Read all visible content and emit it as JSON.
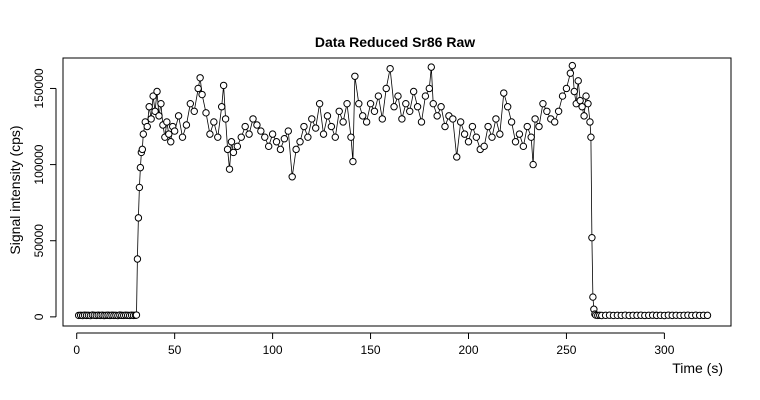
{
  "chart_data": {
    "type": "scatter",
    "title": "Data Reduced Sr86 Raw",
    "xlabel": "Time (s)",
    "ylabel": "Signal intensity (cps)",
    "xlim": [
      -7,
      334
    ],
    "ylim": [
      -6000,
      170000
    ],
    "xticks": [
      0,
      50,
      100,
      150,
      200,
      250,
      300
    ],
    "yticks": [
      0,
      50000,
      100000,
      150000
    ],
    "connected": true,
    "marker": "open-circle",
    "grid": false,
    "legend": "none",
    "points": [
      [
        1,
        950
      ],
      [
        2,
        1050
      ],
      [
        3,
        900
      ],
      [
        4,
        1100
      ],
      [
        5,
        980
      ],
      [
        6,
        1020
      ],
      [
        7,
        870
      ],
      [
        8,
        1150
      ],
      [
        9,
        1000
      ],
      [
        10,
        940
      ],
      [
        11,
        1080
      ],
      [
        12,
        960
      ],
      [
        13,
        1120
      ],
      [
        14,
        890
      ],
      [
        15,
        1010
      ],
      [
        16,
        1060
      ],
      [
        17,
        930
      ],
      [
        18,
        1090
      ],
      [
        19,
        970
      ],
      [
        20,
        1030
      ],
      [
        21,
        880
      ],
      [
        22,
        1140
      ],
      [
        23,
        990
      ],
      [
        24,
        950
      ],
      [
        25,
        1070
      ],
      [
        26,
        1010
      ],
      [
        27,
        920
      ],
      [
        28,
        1100
      ],
      [
        29,
        980
      ],
      [
        30,
        1040
      ],
      [
        30.5,
        1200
      ],
      [
        31,
        38000
      ],
      [
        31.5,
        65000
      ],
      [
        32,
        85000
      ],
      [
        32.5,
        98000
      ],
      [
        33,
        108000
      ],
      [
        33.5,
        110000
      ],
      [
        34,
        120000
      ],
      [
        35,
        128000
      ],
      [
        36,
        125000
      ],
      [
        37,
        138000
      ],
      [
        38,
        130000
      ],
      [
        39,
        145000
      ],
      [
        40,
        135000
      ],
      [
        41,
        148000
      ],
      [
        42,
        132000
      ],
      [
        43,
        140000
      ],
      [
        44,
        126000
      ],
      [
        45,
        118000
      ],
      [
        46,
        128000
      ],
      [
        47,
        120000
      ],
      [
        48,
        115000
      ],
      [
        49,
        125000
      ],
      [
        50,
        122000
      ],
      [
        52,
        132000
      ],
      [
        54,
        118000
      ],
      [
        56,
        126000
      ],
      [
        58,
        140000
      ],
      [
        60,
        135000
      ],
      [
        62,
        150000
      ],
      [
        63,
        157000
      ],
      [
        64,
        146000
      ],
      [
        66,
        134000
      ],
      [
        68,
        120000
      ],
      [
        70,
        128000
      ],
      [
        72,
        118000
      ],
      [
        74,
        138000
      ],
      [
        75,
        152000
      ],
      [
        76,
        130000
      ],
      [
        77,
        110000
      ],
      [
        78,
        97000
      ],
      [
        79,
        115000
      ],
      [
        80,
        108000
      ],
      [
        82,
        112000
      ],
      [
        84,
        118000
      ],
      [
        86,
        125000
      ],
      [
        88,
        120000
      ],
      [
        90,
        130000
      ],
      [
        92,
        126000
      ],
      [
        94,
        122000
      ],
      [
        96,
        118000
      ],
      [
        98,
        112000
      ],
      [
        100,
        120000
      ],
      [
        102,
        115000
      ],
      [
        104,
        110000
      ],
      [
        106,
        117000
      ],
      [
        108,
        122000
      ],
      [
        110,
        92000
      ],
      [
        112,
        110000
      ],
      [
        114,
        115000
      ],
      [
        116,
        125000
      ],
      [
        118,
        118000
      ],
      [
        120,
        130000
      ],
      [
        122,
        124000
      ],
      [
        124,
        140000
      ],
      [
        126,
        120000
      ],
      [
        128,
        132000
      ],
      [
        130,
        125000
      ],
      [
        132,
        118000
      ],
      [
        134,
        135000
      ],
      [
        136,
        128000
      ],
      [
        138,
        140000
      ],
      [
        140,
        118000
      ],
      [
        141,
        102000
      ],
      [
        142,
        158000
      ],
      [
        144,
        140000
      ],
      [
        146,
        132000
      ],
      [
        148,
        128000
      ],
      [
        150,
        140000
      ],
      [
        152,
        135000
      ],
      [
        154,
        145000
      ],
      [
        156,
        130000
      ],
      [
        158,
        150000
      ],
      [
        160,
        163000
      ],
      [
        162,
        138000
      ],
      [
        164,
        145000
      ],
      [
        166,
        130000
      ],
      [
        168,
        140000
      ],
      [
        170,
        135000
      ],
      [
        172,
        148000
      ],
      [
        174,
        138000
      ],
      [
        176,
        128000
      ],
      [
        178,
        145000
      ],
      [
        180,
        150000
      ],
      [
        181,
        164000
      ],
      [
        182,
        140000
      ],
      [
        184,
        132000
      ],
      [
        186,
        138000
      ],
      [
        188,
        125000
      ],
      [
        190,
        132000
      ],
      [
        192,
        130000
      ],
      [
        194,
        105000
      ],
      [
        196,
        128000
      ],
      [
        198,
        120000
      ],
      [
        200,
        115000
      ],
      [
        202,
        125000
      ],
      [
        204,
        118000
      ],
      [
        206,
        110000
      ],
      [
        208,
        112000
      ],
      [
        210,
        125000
      ],
      [
        212,
        118000
      ],
      [
        214,
        130000
      ],
      [
        216,
        120000
      ],
      [
        218,
        147000
      ],
      [
        220,
        138000
      ],
      [
        222,
        128000
      ],
      [
        224,
        115000
      ],
      [
        226,
        120000
      ],
      [
        228,
        112000
      ],
      [
        230,
        125000
      ],
      [
        232,
        118000
      ],
      [
        233,
        100000
      ],
      [
        234,
        130000
      ],
      [
        236,
        125000
      ],
      [
        238,
        140000
      ],
      [
        240,
        135000
      ],
      [
        242,
        130000
      ],
      [
        244,
        128000
      ],
      [
        246,
        135000
      ],
      [
        248,
        145000
      ],
      [
        250,
        150000
      ],
      [
        252,
        160000
      ],
      [
        253,
        165000
      ],
      [
        254,
        148000
      ],
      [
        255,
        140000
      ],
      [
        256,
        155000
      ],
      [
        257,
        142000
      ],
      [
        258,
        138000
      ],
      [
        259,
        132000
      ],
      [
        260,
        145000
      ],
      [
        261,
        140000
      ],
      [
        262,
        128000
      ],
      [
        262.5,
        118000
      ],
      [
        263,
        52000
      ],
      [
        263.5,
        13000
      ],
      [
        264,
        5000
      ],
      [
        264.5,
        1800
      ],
      [
        265,
        1100
      ],
      [
        266,
        950
      ],
      [
        267,
        1050
      ],
      [
        268,
        900
      ],
      [
        270,
        1000
      ],
      [
        272,
        1080
      ],
      [
        274,
        940
      ],
      [
        276,
        1020
      ],
      [
        278,
        960
      ],
      [
        280,
        1100
      ],
      [
        282,
        910
      ],
      [
        284,
        1040
      ],
      [
        286,
        990
      ],
      [
        288,
        1060
      ],
      [
        290,
        930
      ],
      [
        292,
        1010
      ],
      [
        294,
        1090
      ],
      [
        296,
        970
      ],
      [
        298,
        1030
      ],
      [
        300,
        890
      ],
      [
        302,
        1120
      ],
      [
        304,
        980
      ],
      [
        306,
        1050
      ],
      [
        308,
        940
      ],
      [
        310,
        1000
      ],
      [
        312,
        1070
      ],
      [
        314,
        920
      ],
      [
        316,
        1080
      ],
      [
        318,
        960
      ],
      [
        320,
        1010
      ],
      [
        322,
        990
      ]
    ]
  }
}
